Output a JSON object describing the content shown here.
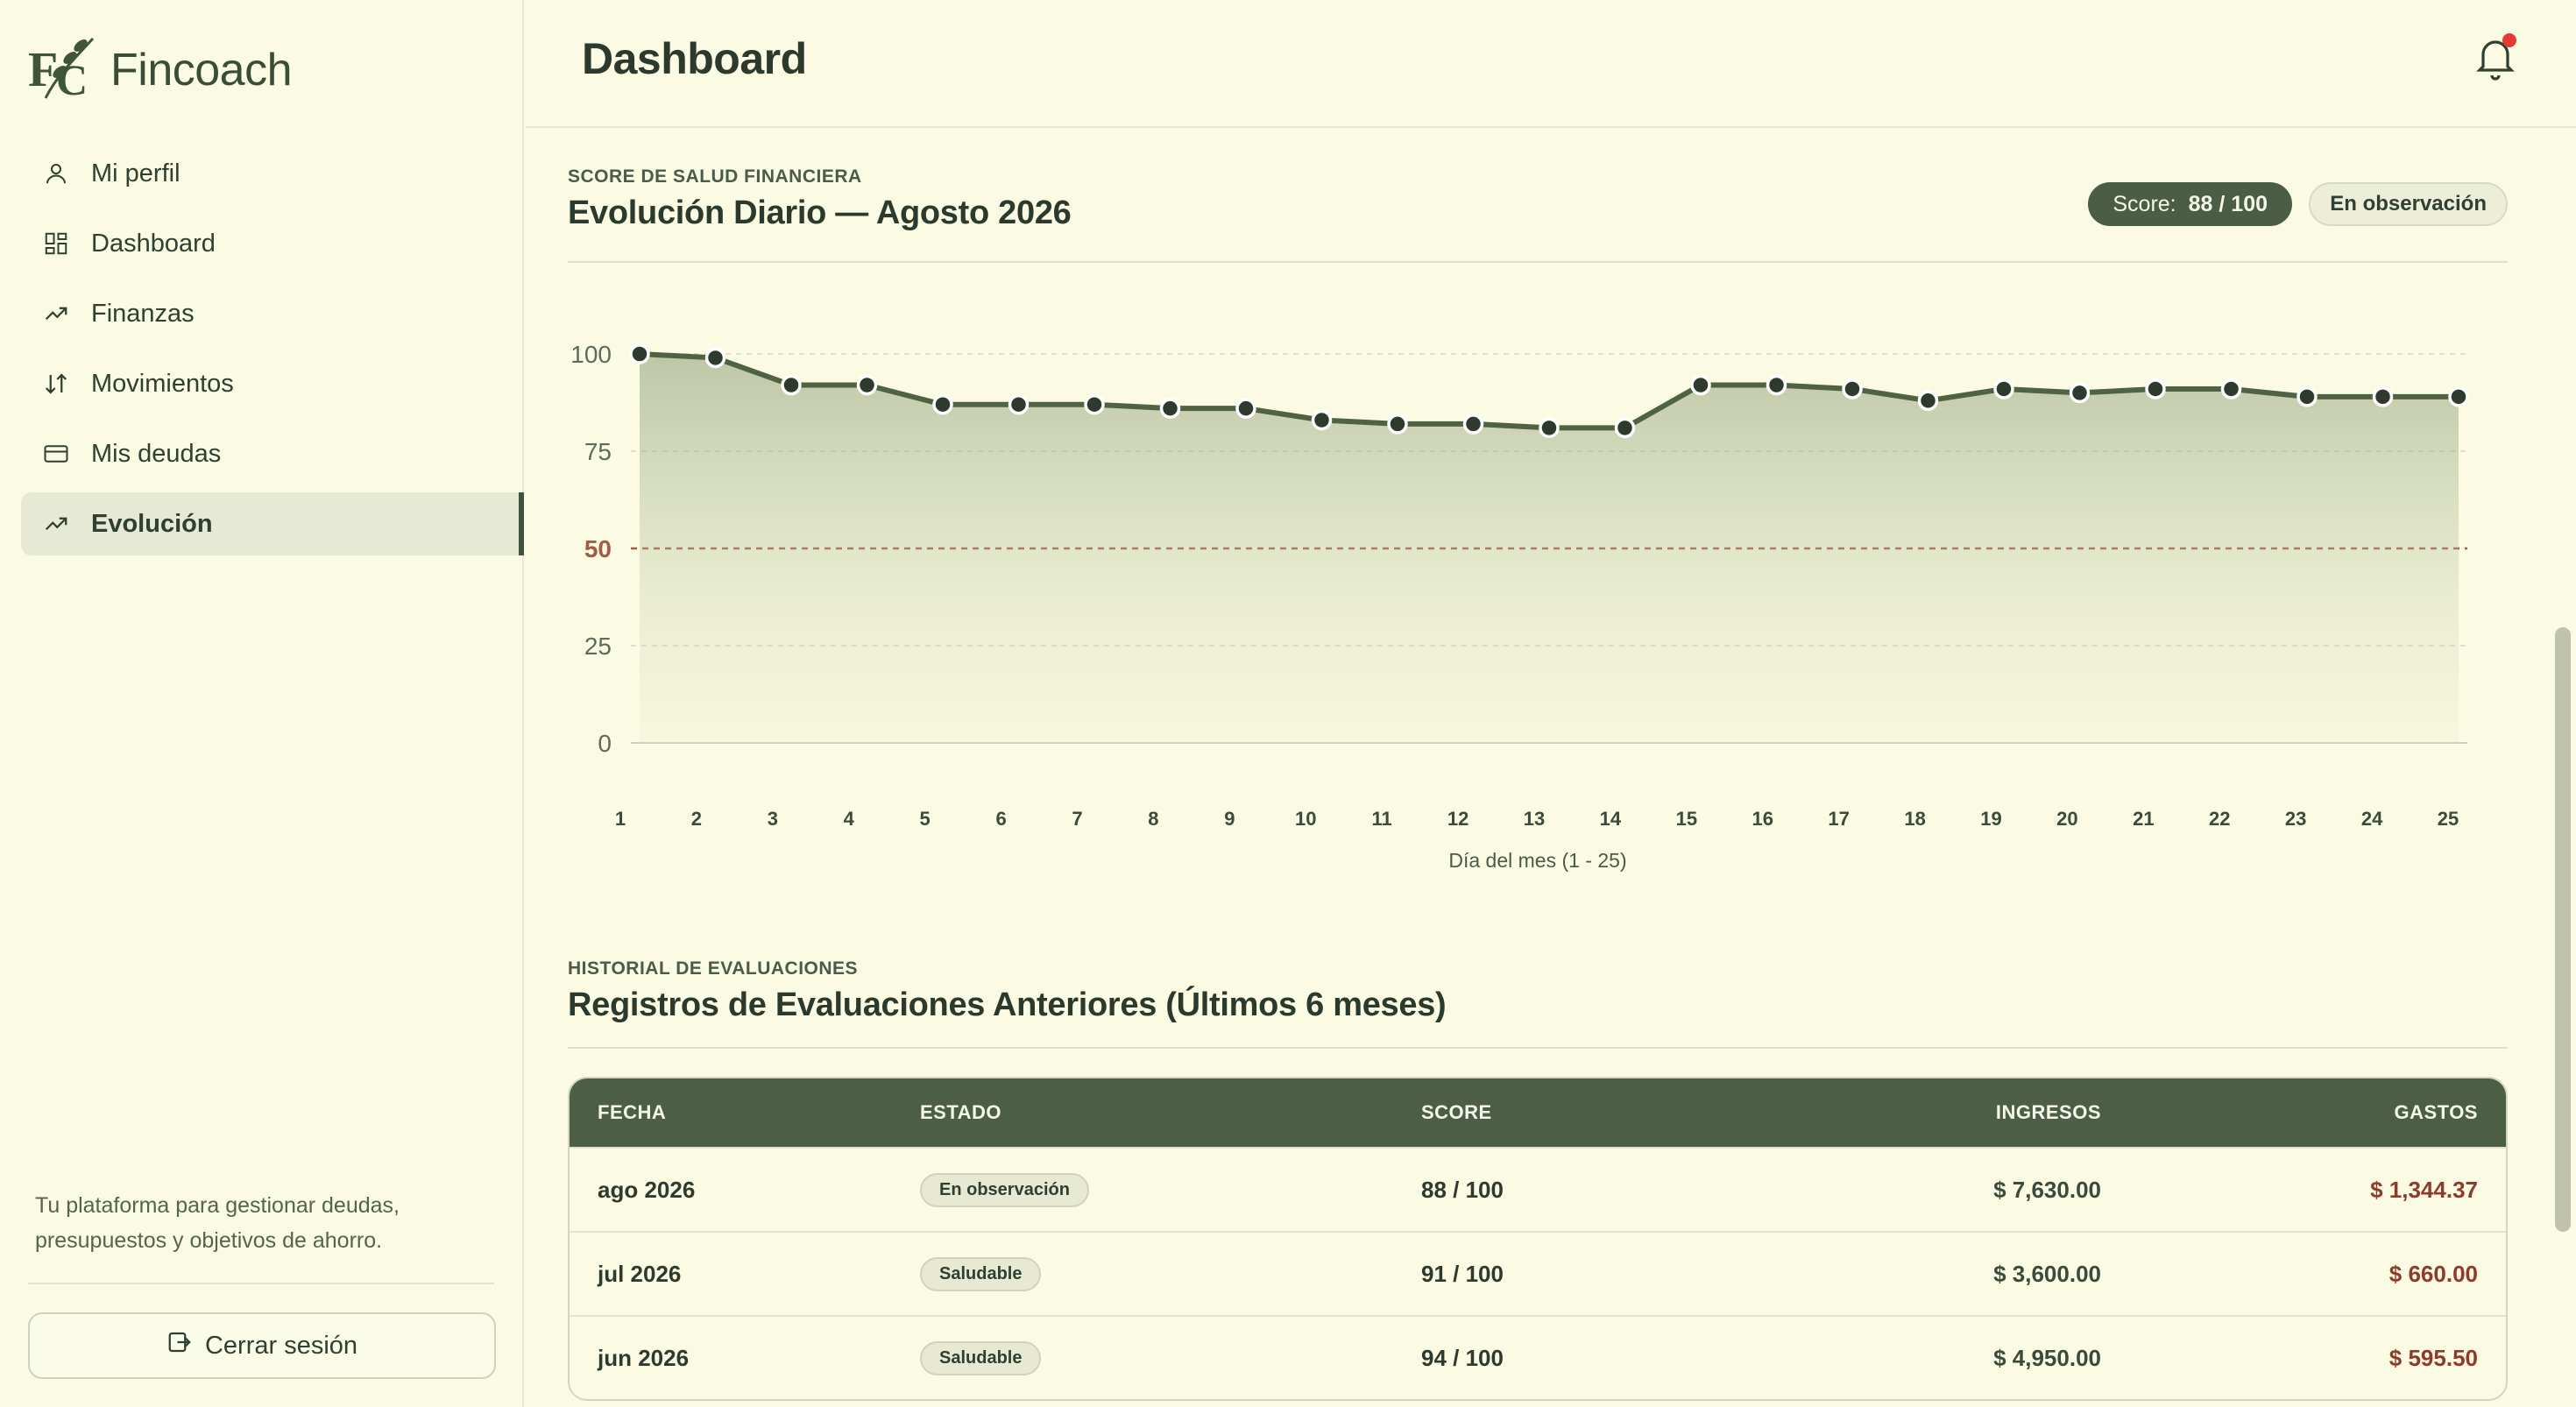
{
  "app": {
    "name": "Fincoach"
  },
  "sidebar": {
    "items": [
      {
        "label": "Mi perfil",
        "icon": "user-icon"
      },
      {
        "label": "Dashboard",
        "icon": "grid-icon"
      },
      {
        "label": "Finanzas",
        "icon": "trend-up-icon"
      },
      {
        "label": "Movimientos",
        "icon": "arrows-updown-icon"
      },
      {
        "label": "Mis deudas",
        "icon": "card-icon"
      },
      {
        "label": "Evolución",
        "icon": "trend-up-icon",
        "active": true
      }
    ],
    "tagline": "Tu plataforma para gestionar deudas, presupuestos y objetivos de ahorro.",
    "logout_label": "Cerrar sesión"
  },
  "header": {
    "title": "Dashboard",
    "has_notification": true
  },
  "score_section": {
    "eyebrow": "SCORE DE SALUD FINANCIERA",
    "title": "Evolución Diario — Agosto 2026",
    "score_label": "Score:",
    "score_value": "88 / 100",
    "status": "En observación"
  },
  "chart_data": {
    "type": "area",
    "x": [
      1,
      2,
      3,
      4,
      5,
      6,
      7,
      8,
      9,
      10,
      11,
      12,
      13,
      14,
      15,
      16,
      17,
      18,
      19,
      20,
      21,
      22,
      23,
      24,
      25
    ],
    "values": [
      100,
      99,
      92,
      92,
      87,
      87,
      87,
      86,
      86,
      83,
      82,
      82,
      81,
      81,
      92,
      92,
      91,
      88,
      91,
      90,
      91,
      91,
      89,
      89,
      89
    ],
    "ylim": [
      0,
      100
    ],
    "yticks": [
      0,
      25,
      50,
      75,
      100
    ],
    "reference_line": 50,
    "xlabel": "Día del mes (1 - 25)",
    "line_color": "#4f6244",
    "reference_color": "#a35a46",
    "grid": true
  },
  "history": {
    "eyebrow": "HISTORIAL DE EVALUACIONES",
    "title": "Registros de Evaluaciones Anteriores (Últimos 6 meses)",
    "columns": [
      "FECHA",
      "ESTADO",
      "SCORE",
      "INGRESOS",
      "GASTOS"
    ],
    "rows": [
      {
        "fecha": "ago 2026",
        "estado": "En observación",
        "score": "88 / 100",
        "ingresos": "$ 7,630.00",
        "gastos": "$ 1,344.37"
      },
      {
        "fecha": "jul 2026",
        "estado": "Saludable",
        "score": "91 / 100",
        "ingresos": "$ 3,600.00",
        "gastos": "$ 660.00"
      },
      {
        "fecha": "jun 2026",
        "estado": "Saludable",
        "score": "94 / 100",
        "ingresos": "$ 4,950.00",
        "gastos": "$ 595.50"
      }
    ]
  }
}
